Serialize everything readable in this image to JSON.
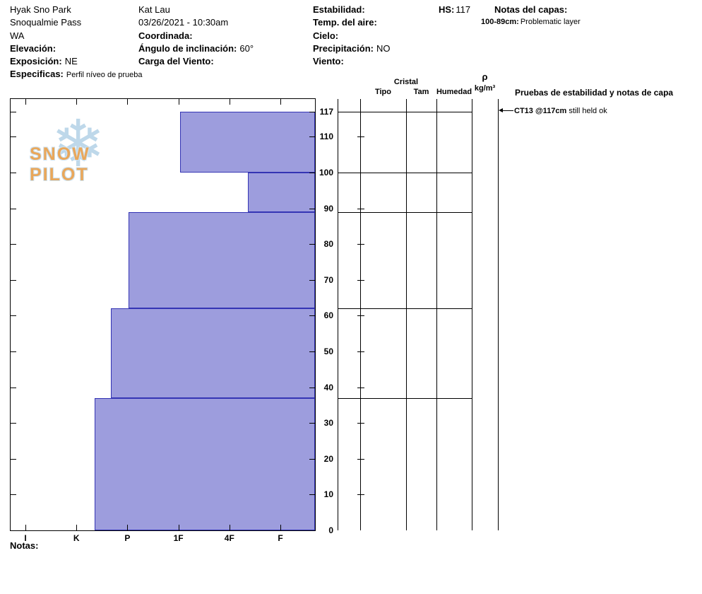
{
  "header": {
    "location": {
      "name": "Hyak Sno Park",
      "area": "Snoqualmie Pass",
      "state": "WA"
    },
    "fields": {
      "elevation_label": "Elevación:",
      "aspect_label": "Exposición:",
      "aspect_value": "NE",
      "specifics_label": "Especificas:",
      "specifics_value": "Perfil níveo de prueba",
      "observer": "Kat Lau",
      "datetime": "03/26/2021 - 10:30am",
      "coordinates_label": "Coordinada:",
      "slope_angle_label": "Ángulo de inclinación:",
      "slope_angle_value": "60°",
      "wind_loading_label": "Carga del Viento:",
      "stability_label": "Estabilidad:",
      "air_temp_label": "Temp. del aire:",
      "sky_label": "Cielo:",
      "precip_label": "Precipitación:",
      "precip_value": "NO",
      "wind_label": "Viento:",
      "hs_label": "HS:",
      "hs_value": "117",
      "layer_notes_label": "Notas del capas:",
      "layer_note_depth": "100-89cm:",
      "layer_note_text": "Problematic layer"
    }
  },
  "chart_data": {
    "type": "bar",
    "orientation": "horizontal",
    "title": "Snow hardness profile",
    "depth_axis": {
      "unit": "cm",
      "max": 117,
      "ticks": [
        0,
        10,
        20,
        30,
        40,
        50,
        60,
        70,
        80,
        90,
        100,
        110,
        117
      ]
    },
    "hardness_axis": {
      "labels": [
        "I",
        "K",
        "P",
        "1F",
        "4F",
        "F"
      ]
    },
    "layers": [
      {
        "top_cm": 117,
        "bottom_cm": 100,
        "hardness": "1F",
        "hardness_index": 3.03
      },
      {
        "top_cm": 100,
        "bottom_cm": 89,
        "hardness": "4F-F",
        "hardness_index": 4.36
      },
      {
        "top_cm": 89,
        "bottom_cm": 62,
        "hardness": "P",
        "hardness_index": 2.02
      },
      {
        "top_cm": 62,
        "bottom_cm": 37,
        "hardness": "P+",
        "hardness_index": 1.68
      },
      {
        "top_cm": 37,
        "bottom_cm": 0,
        "hardness": "K-P",
        "hardness_index": 1.36
      }
    ],
    "bar_fill": "#9d9ddd",
    "bar_stroke": "#3434b4"
  },
  "table": {
    "headers": {
      "cristal": "Cristal",
      "tipo": "Tipo",
      "tam": "Tam",
      "humedad": "Humedad",
      "rho": "ρ",
      "rho_unit": "kg/m³",
      "stability": "Pruebas de estabilidad y notas de capa"
    },
    "boundaries": [
      117,
      100,
      89,
      62,
      37
    ],
    "stability_notes": [
      {
        "depth": 117,
        "label": "CT13 @117cm",
        "note": "still held ok"
      }
    ]
  },
  "footer": {
    "notes_label": "Notas:"
  },
  "logo": {
    "text": "SNOW PILOT"
  }
}
